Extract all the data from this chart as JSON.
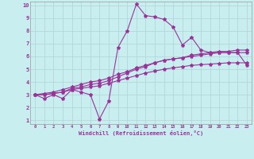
{
  "xlabel": "Windchill (Refroidissement éolien,°C)",
  "background_color": "#c8eef0",
  "grid_color": "#b0d4d4",
  "line_color": "#993399",
  "xlim": [
    -0.5,
    23.5
  ],
  "ylim": [
    0.7,
    10.3
  ],
  "xticks": [
    0,
    1,
    2,
    3,
    4,
    5,
    6,
    7,
    8,
    9,
    10,
    11,
    12,
    13,
    14,
    15,
    16,
    17,
    18,
    19,
    20,
    21,
    22,
    23
  ],
  "yticks": [
    1,
    2,
    3,
    4,
    5,
    6,
    7,
    8,
    9,
    10
  ],
  "series1_x": [
    0,
    1,
    2,
    3,
    4,
    5,
    6,
    7,
    8,
    9,
    10,
    11,
    12,
    13,
    14,
    15,
    16,
    17,
    18,
    19,
    20,
    21,
    22,
    23
  ],
  "series1_y": [
    3.0,
    2.7,
    3.0,
    2.7,
    3.4,
    3.2,
    3.0,
    1.1,
    2.5,
    6.7,
    8.0,
    10.1,
    9.2,
    9.1,
    8.9,
    8.3,
    6.9,
    7.5,
    6.5,
    6.3,
    6.3,
    6.3,
    6.3,
    5.3
  ],
  "series2_x": [
    0,
    1,
    2,
    3,
    4,
    5,
    6,
    7,
    8,
    9,
    10,
    11,
    12,
    13,
    14,
    15,
    16,
    17,
    18,
    19,
    20,
    21,
    22,
    23
  ],
  "series2_y": [
    3.0,
    3.0,
    3.1,
    3.2,
    3.5,
    3.6,
    3.8,
    3.9,
    4.1,
    4.4,
    4.7,
    5.0,
    5.2,
    5.5,
    5.7,
    5.8,
    5.9,
    6.1,
    6.2,
    6.3,
    6.4,
    6.4,
    6.5,
    6.5
  ],
  "series3_x": [
    0,
    1,
    2,
    3,
    4,
    5,
    6,
    7,
    8,
    9,
    10,
    11,
    12,
    13,
    14,
    15,
    16,
    17,
    18,
    19,
    20,
    21,
    22,
    23
  ],
  "series3_y": [
    3.0,
    3.1,
    3.2,
    3.4,
    3.6,
    3.8,
    4.0,
    4.1,
    4.3,
    4.6,
    4.8,
    5.1,
    5.3,
    5.5,
    5.7,
    5.8,
    5.9,
    6.0,
    6.1,
    6.2,
    6.3,
    6.3,
    6.3,
    6.3
  ],
  "series4_x": [
    0,
    1,
    2,
    3,
    4,
    5,
    6,
    7,
    8,
    9,
    10,
    11,
    12,
    13,
    14,
    15,
    16,
    17,
    18,
    19,
    20,
    21,
    22,
    23
  ],
  "series4_y": [
    3.0,
    3.0,
    3.1,
    3.2,
    3.4,
    3.5,
    3.6,
    3.7,
    3.9,
    4.1,
    4.3,
    4.5,
    4.7,
    4.85,
    5.0,
    5.1,
    5.2,
    5.3,
    5.35,
    5.4,
    5.45,
    5.5,
    5.5,
    5.5
  ]
}
